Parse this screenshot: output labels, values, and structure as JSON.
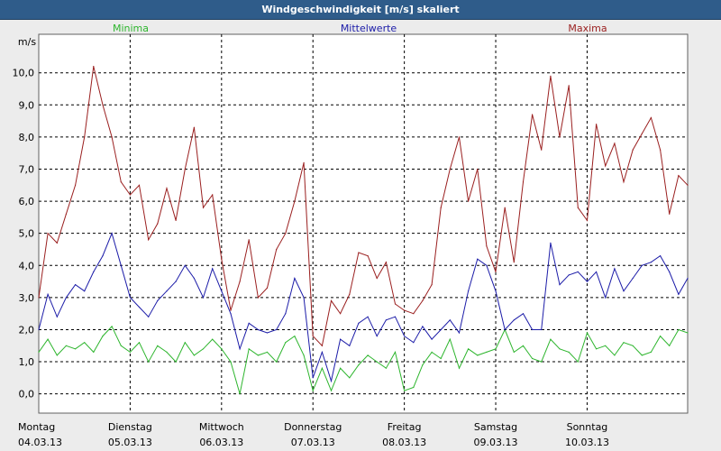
{
  "window": {
    "title": "Windgeschwindigkeit [m/s] skaliert"
  },
  "chart_data": {
    "type": "line",
    "title": "Windgeschwindigkeit [m/s] skaliert",
    "ylabel": "m/s",
    "xlabel": "",
    "ylim": [
      -0.6,
      11.2
    ],
    "xlim": [
      0,
      7.1
    ],
    "grid": true,
    "y_ticks": [
      0,
      1,
      2,
      3,
      4,
      5,
      6,
      7,
      8,
      9,
      10
    ],
    "y_tick_labels": [
      "0,0",
      "1,0",
      "2,0",
      "3,0",
      "4,0",
      "5,0",
      "6,0",
      "7,0",
      "8,0",
      "9,0",
      "10,0"
    ],
    "x_ticks": [
      {
        "pos": 0,
        "day": "Montag",
        "date": "04.03.13"
      },
      {
        "pos": 1,
        "day": "Dienstag",
        "date": "05.03.13"
      },
      {
        "pos": 2,
        "day": "Mittwoch",
        "date": "06.03.13"
      },
      {
        "pos": 3,
        "day": "Donnerstag",
        "date": "07.03.13"
      },
      {
        "pos": 4,
        "day": "Freitag",
        "date": "08.03.13"
      },
      {
        "pos": 5,
        "day": "Samstag",
        "date": "09.03.13"
      },
      {
        "pos": 6,
        "day": "Sonntag",
        "date": "10.03.13"
      }
    ],
    "colors": {
      "Minima": "#2DB52D",
      "Mittelwerte": "#1C1CA8",
      "Maxima": "#9A1F1F"
    },
    "series": [
      {
        "name": "Minima",
        "x": [
          0,
          0.1,
          0.2,
          0.3,
          0.4,
          0.5,
          0.6,
          0.7,
          0.8,
          0.9,
          1.0,
          1.1,
          1.2,
          1.3,
          1.4,
          1.5,
          1.6,
          1.7,
          1.8,
          1.9,
          2.0,
          2.1,
          2.2,
          2.3,
          2.4,
          2.5,
          2.6,
          2.7,
          2.8,
          2.9,
          3.0,
          3.1,
          3.2,
          3.3,
          3.4,
          3.5,
          3.6,
          3.7,
          3.8,
          3.9,
          4.0,
          4.1,
          4.2,
          4.3,
          4.4,
          4.5,
          4.6,
          4.7,
          4.8,
          4.9,
          5.0,
          5.1,
          5.2,
          5.3,
          5.4,
          5.5,
          5.6,
          5.7,
          5.8,
          5.9,
          6.0,
          6.1,
          6.2,
          6.3,
          6.4,
          6.5,
          6.6,
          6.7,
          6.8,
          6.9,
          7.0,
          7.1
        ],
        "values": [
          1.3,
          1.7,
          1.2,
          1.5,
          1.4,
          1.6,
          1.3,
          1.8,
          2.1,
          1.5,
          1.3,
          1.6,
          1.0,
          1.5,
          1.3,
          1.0,
          1.6,
          1.2,
          1.4,
          1.7,
          1.4,
          1.0,
          0.0,
          1.4,
          1.2,
          1.3,
          1.0,
          1.6,
          1.8,
          1.2,
          0.1,
          0.8,
          0.1,
          0.8,
          0.5,
          0.9,
          1.2,
          1.0,
          0.8,
          1.3,
          0.1,
          0.2,
          0.9,
          1.3,
          1.1,
          1.7,
          0.8,
          1.4,
          1.2,
          1.3,
          1.4,
          2.0,
          1.3,
          1.5,
          1.1,
          1.0,
          1.7,
          1.4,
          1.3,
          1.0,
          1.9,
          1.4,
          1.5,
          1.2,
          1.6,
          1.5,
          1.2,
          1.3,
          1.8,
          1.5,
          2.0,
          1.9
        ]
      },
      {
        "name": "Mittelwerte",
        "x": [
          0,
          0.1,
          0.2,
          0.3,
          0.4,
          0.5,
          0.6,
          0.7,
          0.8,
          0.9,
          1.0,
          1.1,
          1.2,
          1.3,
          1.4,
          1.5,
          1.6,
          1.7,
          1.8,
          1.9,
          2.0,
          2.1,
          2.2,
          2.3,
          2.4,
          2.5,
          2.6,
          2.7,
          2.8,
          2.9,
          3.0,
          3.1,
          3.2,
          3.3,
          3.4,
          3.5,
          3.6,
          3.7,
          3.8,
          3.9,
          4.0,
          4.1,
          4.2,
          4.3,
          4.4,
          4.5,
          4.6,
          4.7,
          4.8,
          4.9,
          5.0,
          5.1,
          5.2,
          5.3,
          5.4,
          5.5,
          5.6,
          5.7,
          5.8,
          5.9,
          6.0,
          6.1,
          6.2,
          6.3,
          6.4,
          6.5,
          6.6,
          6.7,
          6.8,
          6.9,
          7.0,
          7.1
        ],
        "values": [
          2.0,
          3.1,
          2.4,
          3.0,
          3.4,
          3.2,
          3.8,
          4.3,
          5.0,
          4.0,
          3.0,
          2.7,
          2.4,
          2.9,
          3.2,
          3.5,
          4.0,
          3.6,
          3.0,
          3.9,
          3.2,
          2.5,
          1.4,
          2.2,
          2.0,
          1.9,
          2.0,
          2.5,
          3.6,
          3.0,
          0.5,
          1.3,
          0.4,
          1.7,
          1.5,
          2.2,
          2.4,
          1.8,
          2.3,
          2.4,
          1.8,
          1.6,
          2.1,
          1.7,
          2.0,
          2.3,
          1.9,
          3.2,
          4.2,
          4.0,
          3.2,
          2.0,
          2.3,
          2.5,
          2.0,
          2.0,
          4.7,
          3.4,
          3.7,
          3.8,
          3.5,
          3.8,
          3.0,
          3.9,
          3.2,
          3.6,
          4.0,
          4.1,
          4.3,
          3.8,
          3.1,
          3.6
        ]
      },
      {
        "name": "Maxima",
        "x": [
          0,
          0.1,
          0.2,
          0.3,
          0.4,
          0.5,
          0.6,
          0.7,
          0.8,
          0.9,
          1.0,
          1.1,
          1.2,
          1.3,
          1.4,
          1.5,
          1.6,
          1.7,
          1.8,
          1.9,
          2.0,
          2.1,
          2.2,
          2.3,
          2.4,
          2.5,
          2.6,
          2.7,
          2.8,
          2.9,
          3.0,
          3.1,
          3.2,
          3.3,
          3.4,
          3.5,
          3.6,
          3.7,
          3.8,
          3.9,
          4.0,
          4.1,
          4.2,
          4.3,
          4.4,
          4.5,
          4.6,
          4.7,
          4.8,
          4.9,
          5.0,
          5.1,
          5.2,
          5.3,
          5.4,
          5.5,
          5.6,
          5.7,
          5.8,
          5.9,
          6.0,
          6.1,
          6.2,
          6.3,
          6.4,
          6.5,
          6.6,
          6.7,
          6.8,
          6.9,
          7.0,
          7.1
        ],
        "values": [
          3.0,
          5.0,
          4.7,
          5.6,
          6.5,
          8.0,
          10.2,
          9.0,
          8.0,
          6.6,
          6.2,
          6.5,
          4.8,
          5.3,
          6.4,
          5.4,
          7.0,
          8.3,
          5.8,
          6.2,
          4.2,
          2.6,
          3.5,
          4.8,
          3.0,
          3.3,
          4.5,
          5.0,
          6.0,
          7.2,
          1.8,
          1.5,
          2.9,
          2.5,
          3.1,
          4.4,
          4.3,
          3.6,
          4.1,
          2.8,
          2.6,
          2.5,
          2.9,
          3.4,
          5.8,
          7.0,
          8.0,
          6.0,
          7.0,
          4.6,
          3.8,
          5.8,
          4.1,
          6.6,
          8.7,
          7.6,
          9.9,
          8.0,
          9.6,
          5.8,
          5.4,
          8.4,
          7.1,
          7.8,
          6.6,
          7.6,
          8.1,
          8.6,
          7.6,
          5.6,
          6.8,
          6.5
        ]
      }
    ],
    "legend": [
      "Minima",
      "Mittelwerte",
      "Maxima"
    ]
  }
}
